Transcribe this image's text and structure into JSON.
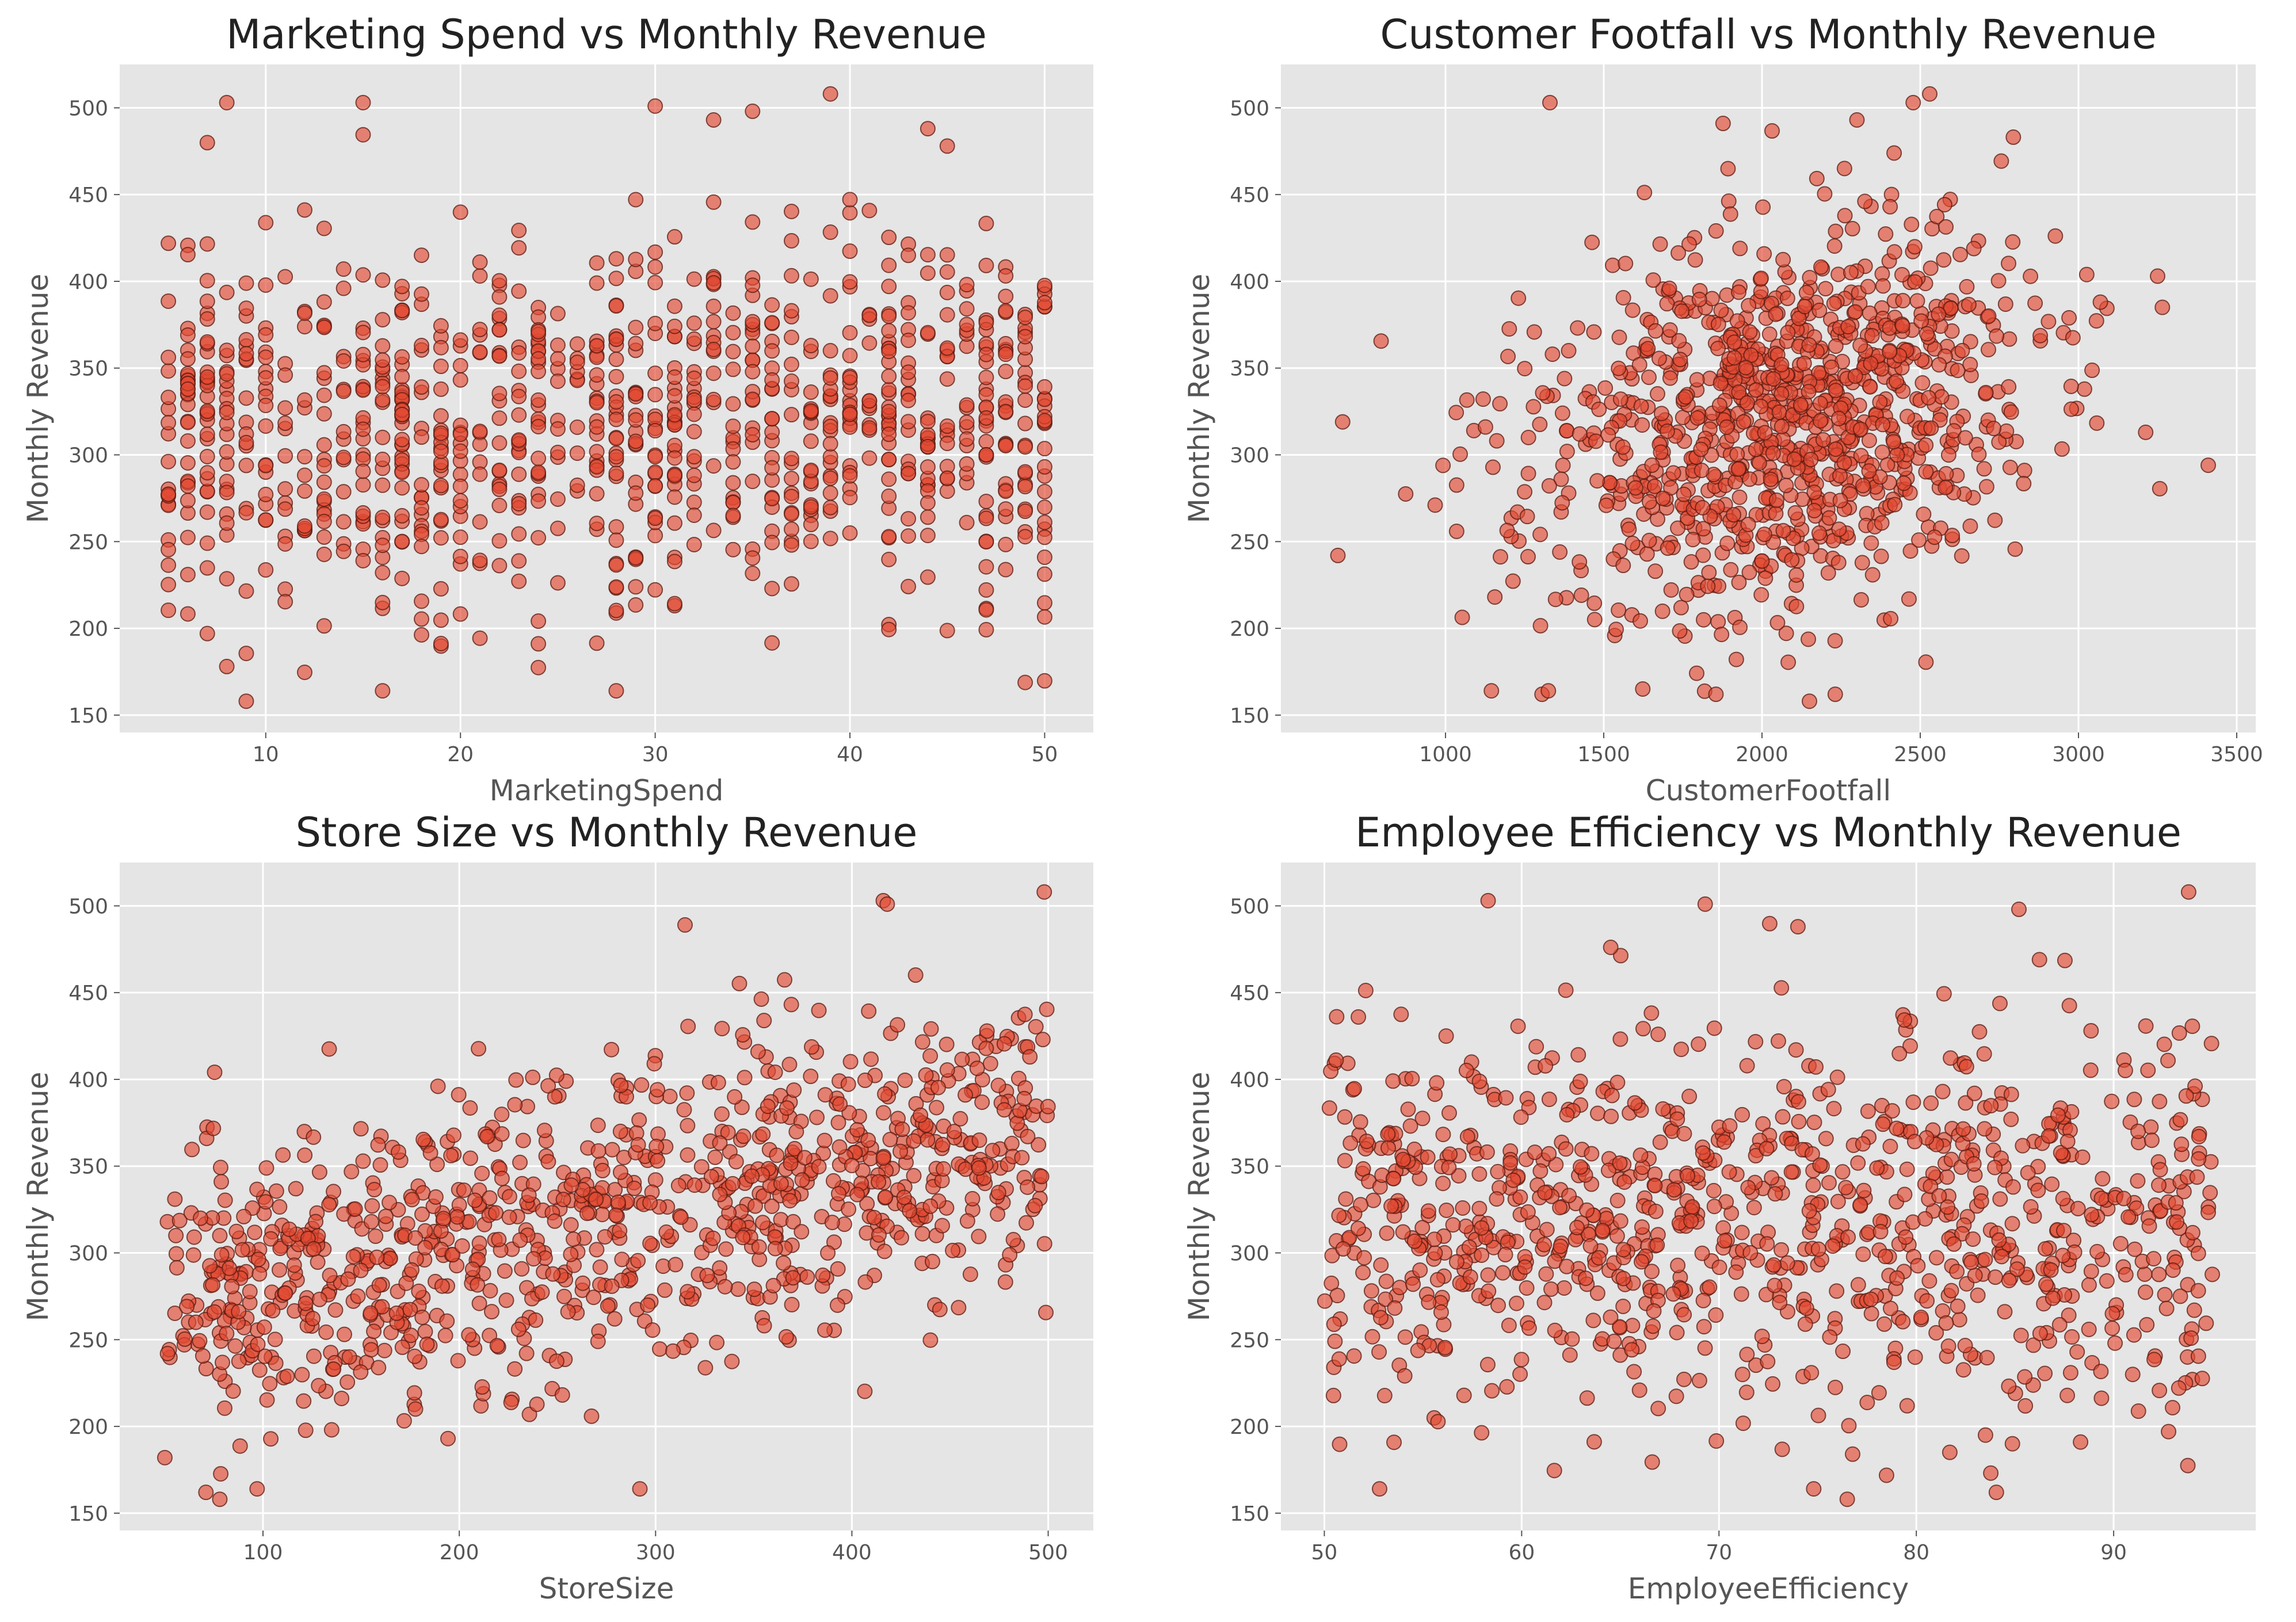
{
  "colors": {
    "panel_background": "#e5e5e5",
    "grid": "#ffffff",
    "point_fill": "#e24a33",
    "point_edge": "#5a1a10",
    "text": "#222222",
    "tick_text": "#555555"
  },
  "chart_data": [
    {
      "type": "scatter",
      "title": "Marketing Spend vs Monthly Revenue",
      "xlabel": "MarketingSpend",
      "ylabel": "Monthly Revenue",
      "xlim": [
        2.5,
        52.5
      ],
      "ylim": [
        140,
        525
      ],
      "xticks": [
        10,
        20,
        30,
        40,
        50
      ],
      "yticks": [
        150,
        200,
        250,
        300,
        350,
        400,
        450,
        500
      ],
      "grid": true,
      "x_discrete": true,
      "x_range": [
        5,
        50
      ],
      "y_mean": 318,
      "y_sd": 55,
      "slope": 0.3,
      "n_points": 1000,
      "highlights": [
        [
          15,
          503
        ],
        [
          30,
          501
        ],
        [
          39,
          508
        ],
        [
          33,
          493
        ],
        [
          35,
          498
        ],
        [
          44,
          488
        ],
        [
          9,
          158
        ],
        [
          28,
          164
        ],
        [
          16,
          164
        ],
        [
          8,
          178
        ]
      ],
      "seed": 11
    },
    {
      "type": "scatter",
      "title": "Customer Footfall vs Monthly Revenue",
      "xlabel": "CustomerFootfall",
      "ylabel": "Monthly Revenue",
      "xlim": [
        480,
        3560
      ],
      "ylim": [
        140,
        525
      ],
      "xticks": [
        1000,
        1500,
        2000,
        2500,
        3000,
        3500
      ],
      "yticks": [
        150,
        200,
        250,
        300,
        350,
        400,
        450,
        500
      ],
      "grid": true,
      "x_mean": 2050,
      "x_sd": 400,
      "y_mean": 318,
      "y_sd": 55,
      "slope": 0.03,
      "n_points": 1000,
      "highlights": [
        [
          660,
          242
        ],
        [
          675,
          319
        ],
        [
          1330,
          503
        ],
        [
          2530,
          508
        ],
        [
          3410,
          294
        ],
        [
          3250,
          403
        ],
        [
          3265,
          385
        ],
        [
          2150,
          158
        ],
        [
          1145,
          164
        ],
        [
          1325,
          164
        ],
        [
          2300,
          493
        ]
      ],
      "seed": 23
    },
    {
      "type": "scatter",
      "title": "Store Size vs Monthly Revenue",
      "xlabel": "StoreSize",
      "ylabel": "Monthly Revenue",
      "xlim": [
        27,
        523
      ],
      "ylim": [
        140,
        525
      ],
      "xticks": [
        100,
        200,
        300,
        400,
        500
      ],
      "yticks": [
        150,
        200,
        250,
        300,
        350,
        400,
        450,
        500
      ],
      "grid": true,
      "x_range": [
        50,
        500
      ],
      "y_mean": 318,
      "y_sd": 43,
      "slope": 0.22,
      "n_points": 1000,
      "highlights": [
        [
          498,
          508
        ],
        [
          416,
          503
        ],
        [
          418,
          501
        ],
        [
          315,
          489
        ],
        [
          78,
          158
        ],
        [
          97,
          164
        ],
        [
          292,
          164
        ],
        [
          50,
          182
        ]
      ],
      "seed": 37
    },
    {
      "type": "scatter",
      "title": "Employee Efficiency vs Monthly Revenue",
      "xlabel": "EmployeeEfficiency",
      "ylabel": "Monthly Revenue",
      "xlim": [
        47.8,
        97.2
      ],
      "ylim": [
        140,
        525
      ],
      "xticks": [
        50,
        60,
        70,
        80,
        90
      ],
      "yticks": [
        150,
        200,
        250,
        300,
        350,
        400,
        450,
        500
      ],
      "grid": true,
      "x_range": [
        50,
        95
      ],
      "y_mean": 318,
      "y_sd": 55,
      "slope": 0,
      "n_points": 1000,
      "highlights": [
        [
          58.3,
          503
        ],
        [
          69.3,
          501
        ],
        [
          93.8,
          508
        ],
        [
          76.5,
          158
        ],
        [
          52.8,
          164
        ],
        [
          74.8,
          164
        ],
        [
          85.2,
          498
        ],
        [
          74,
          488
        ]
      ],
      "seed": 53
    }
  ]
}
